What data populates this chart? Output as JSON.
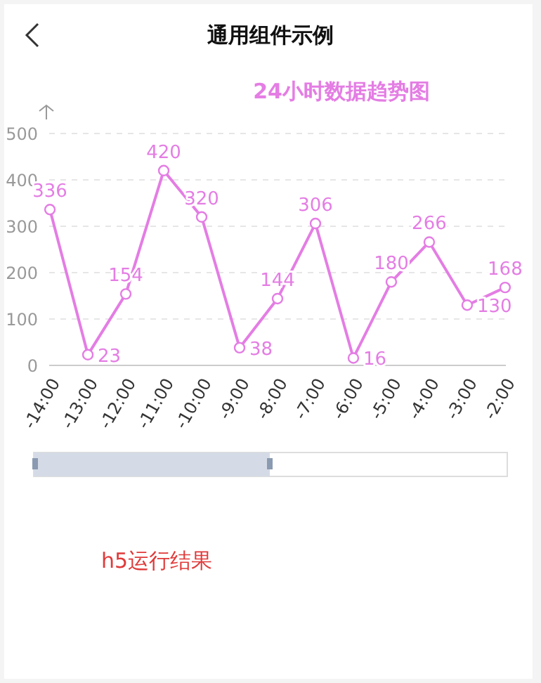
{
  "chart_data": {
    "type": "line",
    "title": "24小时数据趋势图",
    "categories": [
      "-14:00",
      "-13:00",
      "-12:00",
      "-11:00",
      "-10:00",
      "-9:00",
      "-8:00",
      "-7:00",
      "-6:00",
      "-5:00",
      "-4:00",
      "-3:00",
      "-2:00"
    ],
    "series": [
      {
        "color": "#e47de4",
        "values": [
          336,
          23,
          154,
          420,
          320,
          38,
          144,
          306,
          16,
          180,
          266,
          130,
          168
        ]
      }
    ],
    "ylim": [
      0,
      500
    ],
    "yticks": [
      0,
      100,
      200,
      300,
      400,
      500
    ],
    "grid": "y",
    "data_labels": true,
    "marker": "circle",
    "line_style": "solid",
    "annotations": [
      "通用组件示例",
      "h5运行结果"
    ]
  }
}
